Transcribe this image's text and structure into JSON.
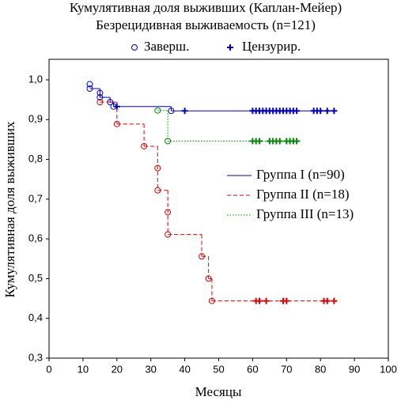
{
  "chart_data": {
    "type": "kaplan-meier",
    "title": "Кумулятивная доля выживших (Каплан-Мейер)",
    "subtitle": "Безрецидивная выживаемость (n=121)",
    "symbol_legend": [
      "Заверш.",
      "Цензурир."
    ],
    "x_label": "Месяцы",
    "y_label": "Кумулятивная доля выживших",
    "xlim": [
      0,
      100
    ],
    "ylim": [
      0.3,
      1.0
    ],
    "xticks": [
      0,
      10,
      20,
      30,
      40,
      50,
      60,
      70,
      80,
      90,
      100
    ],
    "yticks": [
      {
        "value": 0.3,
        "label": "0,3"
      },
      {
        "value": 0.4,
        "label": "0,4"
      },
      {
        "value": 0.5,
        "label": "0,5"
      },
      {
        "value": 0.6,
        "label": "0,6"
      },
      {
        "value": 0.7,
        "label": "0,7"
      },
      {
        "value": 0.8,
        "label": "0,8"
      },
      {
        "value": 0.9,
        "label": "0,9"
      },
      {
        "value": 1.0,
        "label": "1,0"
      }
    ],
    "grid": false,
    "series": [
      {
        "name": "Группа I (n=90)",
        "color": "#0000cc",
        "dash": "solid",
        "x": [
          12,
          15,
          18,
          19,
          36,
          84
        ],
        "values": [
          0.978,
          0.956,
          0.944,
          0.933,
          0.922,
          0.922
        ],
        "events": {
          "x": [
            12,
            12,
            15,
            15,
            18,
            19,
            36
          ],
          "values": [
            0.989,
            0.978,
            0.967,
            0.956,
            0.944,
            0.933,
            0.922
          ]
        },
        "censored": {
          "x": [
            20,
            40,
            60,
            61,
            62,
            63,
            64,
            65,
            66,
            67,
            68,
            69,
            70,
            71,
            72,
            73,
            78,
            79,
            80,
            82,
            84
          ],
          "values": [
            0.933,
            0.922,
            0.922,
            0.922,
            0.922,
            0.922,
            0.922,
            0.922,
            0.922,
            0.922,
            0.922,
            0.922,
            0.922,
            0.922,
            0.922,
            0.922,
            0.922,
            0.922,
            0.922,
            0.922,
            0.922
          ]
        }
      },
      {
        "name": "Группа II (n=18)",
        "color": "#dd0000",
        "dash": "dashed",
        "x": [
          15,
          20,
          28,
          32,
          35,
          45,
          47,
          48,
          84
        ],
        "values": [
          0.944,
          0.889,
          0.833,
          0.722,
          0.611,
          0.556,
          0.5,
          0.444,
          0.444
        ],
        "events": {
          "x": [
            15,
            20,
            28,
            32,
            32,
            35,
            35,
            45,
            47,
            48
          ],
          "values": [
            0.944,
            0.889,
            0.833,
            0.778,
            0.722,
            0.667,
            0.611,
            0.556,
            0.5,
            0.444
          ]
        },
        "censored": {
          "x": [
            61,
            62,
            64,
            69,
            70,
            81,
            82,
            84
          ],
          "values": [
            0.444,
            0.444,
            0.444,
            0.444,
            0.444,
            0.444,
            0.444,
            0.444
          ]
        }
      },
      {
        "name": "Группа III (n=13)",
        "color": "#008800",
        "dash": "dotted",
        "x": [
          32,
          35,
          74
        ],
        "values": [
          0.923,
          0.846,
          0.846
        ],
        "events": {
          "x": [
            32,
            35
          ],
          "values": [
            0.923,
            0.846
          ]
        },
        "censored": {
          "x": [
            60,
            61,
            62,
            65,
            66,
            67,
            68,
            70,
            71,
            72,
            73
          ],
          "values": [
            0.846,
            0.846,
            0.846,
            0.846,
            0.846,
            0.846,
            0.846,
            0.846,
            0.846,
            0.846,
            0.846
          ]
        }
      }
    ]
  }
}
